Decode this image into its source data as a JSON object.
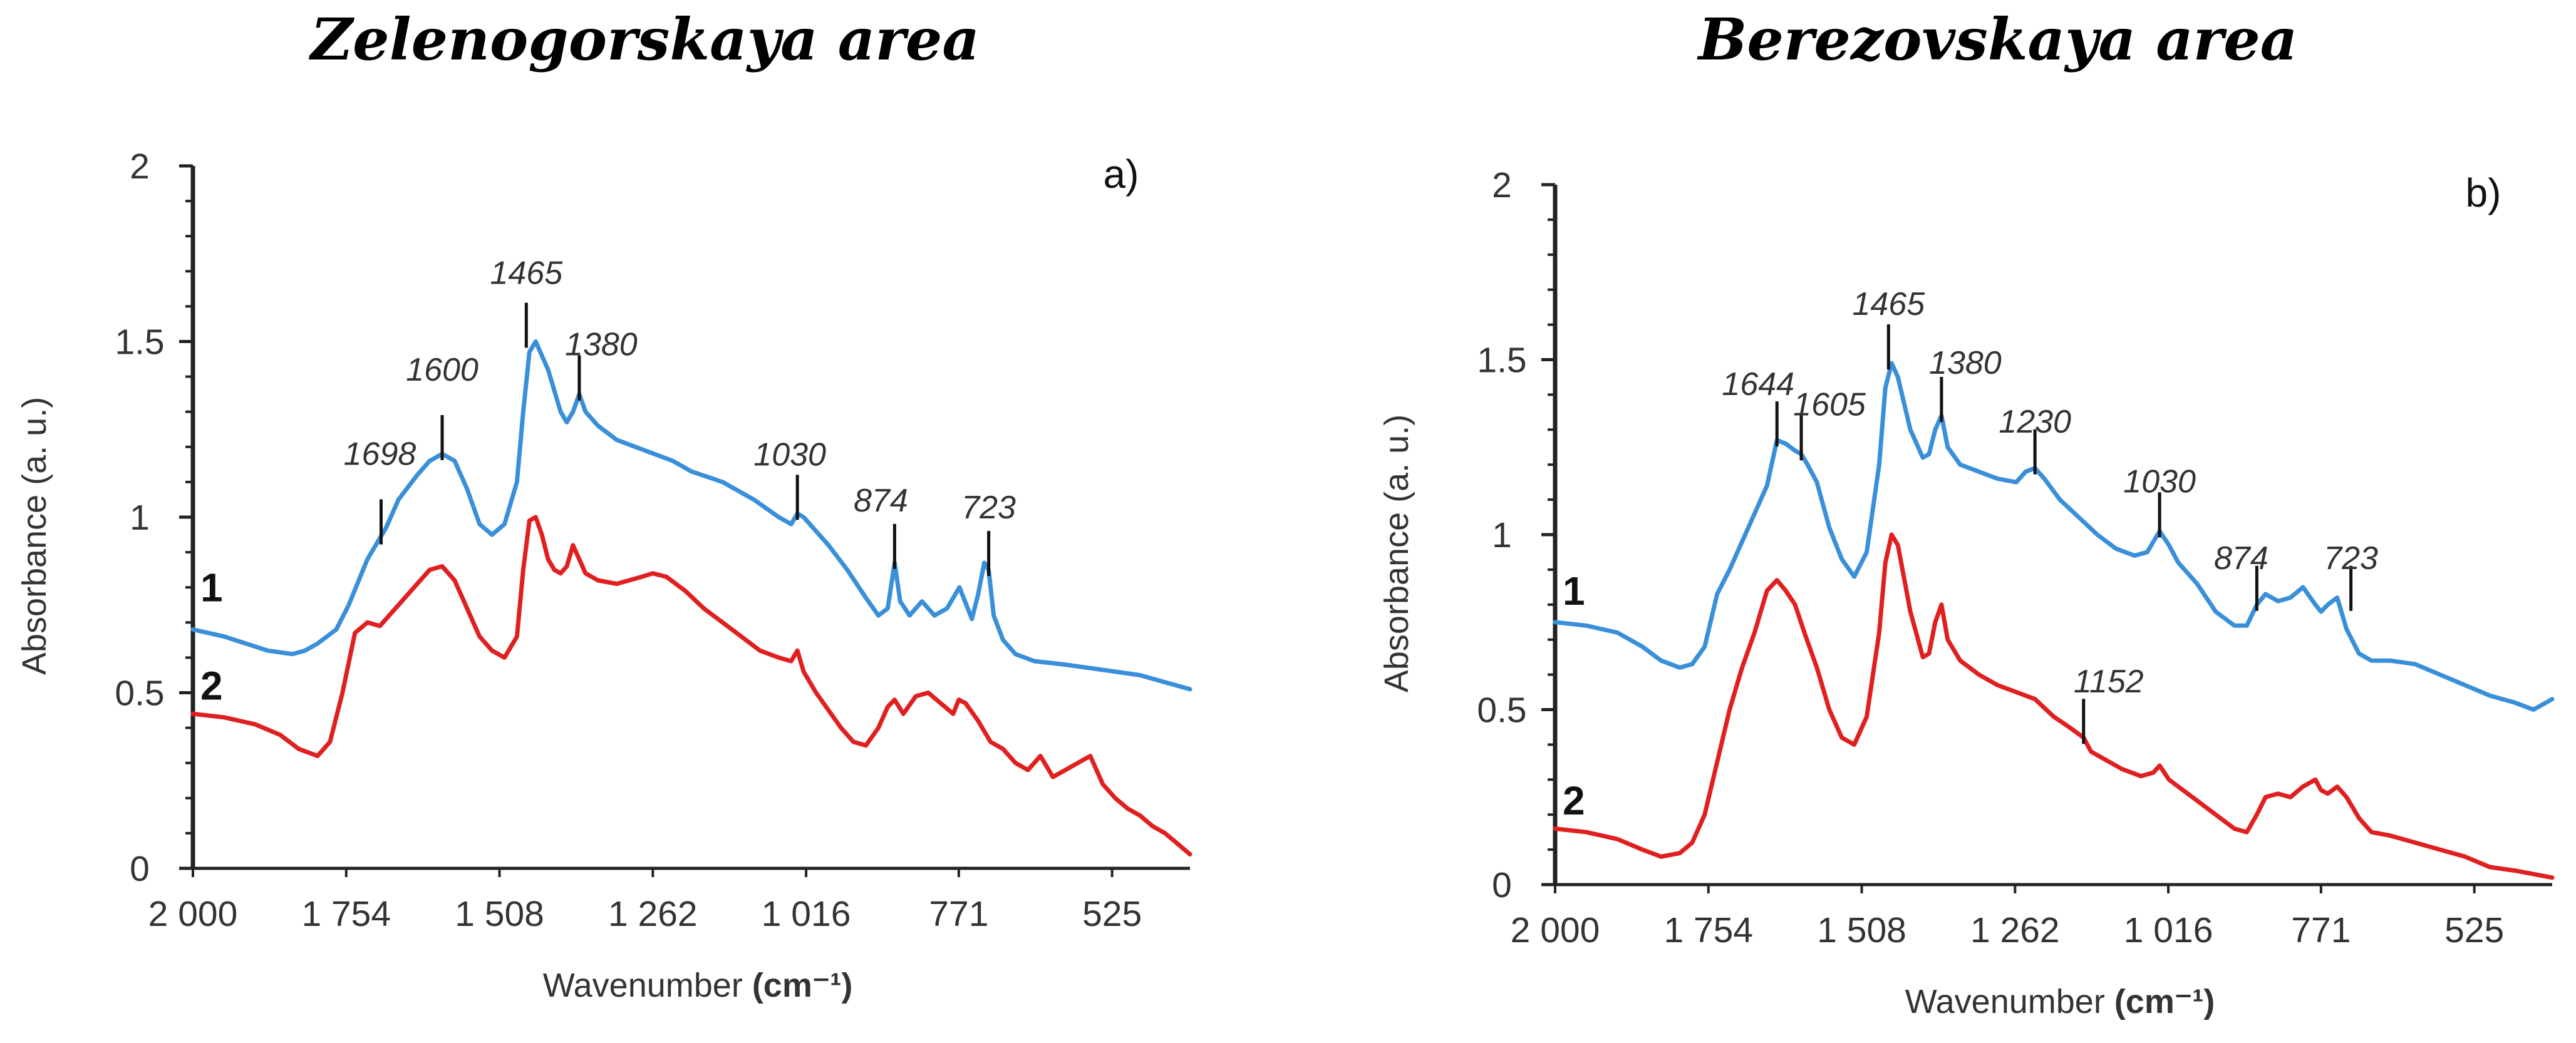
{
  "chart_data": [
    {
      "type": "line",
      "panel_label": "a)",
      "title": "Zelenogorskaya area",
      "xlabel": "Wavenumber",
      "xlabel_unit": "(cm⁻¹)",
      "ylabel": "Absorbance (a. u.)",
      "xlim": [
        2000,
        400
      ],
      "ylim": [
        0,
        2
      ],
      "x_ticks": [
        2000,
        1754,
        1508,
        1262,
        1016,
        771,
        525
      ],
      "x_tick_labels": [
        "2 000",
        "1 754",
        "1 508",
        "1 262",
        "1 016",
        "771",
        "525"
      ],
      "y_ticks": [
        0,
        0.5,
        1,
        1.5,
        2
      ],
      "y_tick_labels": [
        "0",
        "0.5",
        "1",
        "1.5",
        "2"
      ],
      "series": [
        {
          "name": "1",
          "color": "#3a8fd9",
          "x": [
            2000,
            1950,
            1880,
            1840,
            1820,
            1800,
            1770,
            1750,
            1720,
            1700,
            1690,
            1670,
            1640,
            1620,
            1600,
            1580,
            1560,
            1540,
            1520,
            1500,
            1480,
            1470,
            1460,
            1450,
            1430,
            1410,
            1400,
            1390,
            1380,
            1370,
            1350,
            1320,
            1290,
            1260,
            1230,
            1200,
            1150,
            1100,
            1060,
            1040,
            1030,
            1020,
            1000,
            980,
            950,
            920,
            900,
            885,
            874,
            865,
            850,
            830,
            810,
            790,
            770,
            750,
            740,
            730,
            723,
            715,
            700,
            680,
            650,
            600,
            560,
            520,
            480,
            440,
            400
          ],
          "y": [
            0.68,
            0.66,
            0.62,
            0.61,
            0.62,
            0.64,
            0.68,
            0.75,
            0.88,
            0.94,
            0.97,
            1.05,
            1.12,
            1.16,
            1.18,
            1.16,
            1.08,
            0.98,
            0.95,
            0.98,
            1.1,
            1.3,
            1.47,
            1.5,
            1.42,
            1.3,
            1.27,
            1.3,
            1.35,
            1.3,
            1.26,
            1.22,
            1.2,
            1.18,
            1.16,
            1.13,
            1.1,
            1.05,
            1.0,
            0.98,
            1.01,
            1.0,
            0.96,
            0.92,
            0.85,
            0.77,
            0.72,
            0.74,
            0.87,
            0.76,
            0.72,
            0.76,
            0.72,
            0.74,
            0.8,
            0.71,
            0.78,
            0.87,
            0.85,
            0.72,
            0.65,
            0.61,
            0.59,
            0.58,
            0.57,
            0.56,
            0.55,
            0.53,
            0.51
          ]
        },
        {
          "name": "2",
          "color": "#e02020",
          "x": [
            2000,
            1950,
            1900,
            1860,
            1830,
            1800,
            1780,
            1760,
            1740,
            1720,
            1700,
            1680,
            1660,
            1640,
            1620,
            1600,
            1580,
            1560,
            1540,
            1530,
            1520,
            1500,
            1480,
            1470,
            1460,
            1450,
            1440,
            1430,
            1420,
            1410,
            1400,
            1390,
            1380,
            1370,
            1350,
            1320,
            1300,
            1280,
            1262,
            1240,
            1210,
            1180,
            1150,
            1120,
            1090,
            1060,
            1040,
            1030,
            1020,
            1000,
            980,
            960,
            940,
            920,
            900,
            885,
            874,
            860,
            840,
            820,
            800,
            780,
            771,
            760,
            740,
            720,
            700,
            680,
            660,
            640,
            620,
            600,
            580,
            560,
            540,
            520,
            500,
            480,
            460,
            440,
            420,
            400
          ],
          "y": [
            0.44,
            0.43,
            0.41,
            0.38,
            0.34,
            0.32,
            0.36,
            0.5,
            0.67,
            0.7,
            0.69,
            0.73,
            0.77,
            0.81,
            0.85,
            0.86,
            0.82,
            0.74,
            0.66,
            0.64,
            0.62,
            0.6,
            0.66,
            0.85,
            0.99,
            1.0,
            0.95,
            0.88,
            0.85,
            0.84,
            0.86,
            0.92,
            0.88,
            0.84,
            0.82,
            0.81,
            0.82,
            0.83,
            0.84,
            0.83,
            0.79,
            0.74,
            0.7,
            0.66,
            0.62,
            0.6,
            0.59,
            0.62,
            0.56,
            0.5,
            0.45,
            0.4,
            0.36,
            0.35,
            0.4,
            0.46,
            0.48,
            0.44,
            0.49,
            0.5,
            0.47,
            0.44,
            0.48,
            0.47,
            0.42,
            0.36,
            0.34,
            0.3,
            0.28,
            0.32,
            0.26,
            0.28,
            0.3,
            0.32,
            0.24,
            0.2,
            0.17,
            0.15,
            0.12,
            0.1,
            0.07,
            0.04
          ]
        }
      ],
      "peaks": [
        {
          "label": "1698",
          "x": 1698,
          "y": 0.94
        },
        {
          "label": "1600",
          "x": 1600,
          "y": 1.18
        },
        {
          "label": "1465",
          "x": 1465,
          "y": 1.5
        },
        {
          "label": "1380",
          "x": 1380,
          "y": 1.35
        },
        {
          "label": "1030",
          "x": 1030,
          "y": 1.01
        },
        {
          "label": "874",
          "x": 874,
          "y": 0.87
        },
        {
          "label": "723",
          "x": 723,
          "y": 0.85
        }
      ],
      "series_labels": [
        {
          "text": "1",
          "x": 1970,
          "y": 0.76
        },
        {
          "text": "2",
          "x": 1970,
          "y": 0.48
        }
      ]
    },
    {
      "type": "line",
      "panel_label": "b)",
      "title": "Berezovskaya area",
      "xlabel": "Wavenumber",
      "xlabel_unit": "(cm⁻¹)",
      "ylabel": "Absorbance (a. u.)",
      "xlim": [
        2000,
        400
      ],
      "ylim": [
        0,
        2
      ],
      "x_ticks": [
        2000,
        1754,
        1508,
        1262,
        1016,
        771,
        525
      ],
      "x_tick_labels": [
        "2 000",
        "1 754",
        "1 508",
        "1 262",
        "1 016",
        "771",
        "525"
      ],
      "y_ticks": [
        0,
        0.5,
        1,
        1.5,
        2
      ],
      "y_tick_labels": [
        "0",
        "0.5",
        "1",
        "1.5",
        "2"
      ],
      "series": [
        {
          "name": "1",
          "color": "#3a8fd9",
          "x": [
            2000,
            1950,
            1900,
            1860,
            1830,
            1800,
            1780,
            1760,
            1740,
            1720,
            1700,
            1680,
            1660,
            1644,
            1630,
            1615,
            1605,
            1595,
            1580,
            1560,
            1540,
            1520,
            1500,
            1480,
            1470,
            1460,
            1450,
            1430,
            1410,
            1400,
            1390,
            1380,
            1370,
            1350,
            1320,
            1290,
            1260,
            1245,
            1230,
            1215,
            1190,
            1160,
            1130,
            1100,
            1070,
            1050,
            1030,
            1015,
            1000,
            970,
            940,
            910,
            890,
            874,
            860,
            840,
            820,
            800,
            780,
            771,
            760,
            745,
            730,
            710,
            690,
            660,
            620,
            580,
            540,
            500,
            460,
            430,
            400
          ],
          "y": [
            0.75,
            0.74,
            0.72,
            0.68,
            0.64,
            0.62,
            0.63,
            0.68,
            0.83,
            0.9,
            0.98,
            1.06,
            1.14,
            1.27,
            1.26,
            1.24,
            1.23,
            1.2,
            1.15,
            1.02,
            0.93,
            0.88,
            0.95,
            1.2,
            1.42,
            1.49,
            1.45,
            1.3,
            1.22,
            1.23,
            1.3,
            1.34,
            1.25,
            1.2,
            1.18,
            1.16,
            1.15,
            1.18,
            1.19,
            1.16,
            1.1,
            1.05,
            1.0,
            0.96,
            0.94,
            0.95,
            1.01,
            0.97,
            0.92,
            0.86,
            0.78,
            0.74,
            0.74,
            0.8,
            0.83,
            0.81,
            0.82,
            0.85,
            0.8,
            0.78,
            0.8,
            0.82,
            0.73,
            0.66,
            0.64,
            0.64,
            0.63,
            0.6,
            0.57,
            0.54,
            0.52,
            0.5,
            0.53
          ]
        },
        {
          "name": "2",
          "color": "#e02020",
          "x": [
            2000,
            1950,
            1900,
            1860,
            1830,
            1800,
            1780,
            1760,
            1740,
            1720,
            1700,
            1680,
            1660,
            1644,
            1630,
            1615,
            1600,
            1580,
            1560,
            1540,
            1520,
            1500,
            1480,
            1470,
            1460,
            1450,
            1430,
            1410,
            1400,
            1390,
            1380,
            1370,
            1350,
            1320,
            1290,
            1260,
            1230,
            1200,
            1175,
            1152,
            1140,
            1120,
            1090,
            1060,
            1040,
            1030,
            1015,
            1000,
            970,
            940,
            910,
            890,
            874,
            860,
            840,
            820,
            800,
            780,
            771,
            760,
            745,
            730,
            710,
            690,
            660,
            620,
            580,
            540,
            500,
            460,
            430,
            400
          ],
          "y": [
            0.16,
            0.15,
            0.13,
            0.1,
            0.08,
            0.09,
            0.12,
            0.2,
            0.35,
            0.5,
            0.62,
            0.72,
            0.84,
            0.87,
            0.84,
            0.8,
            0.72,
            0.62,
            0.5,
            0.42,
            0.4,
            0.48,
            0.72,
            0.92,
            1.0,
            0.97,
            0.78,
            0.65,
            0.66,
            0.75,
            0.8,
            0.7,
            0.64,
            0.6,
            0.57,
            0.55,
            0.53,
            0.48,
            0.45,
            0.42,
            0.38,
            0.36,
            0.33,
            0.31,
            0.32,
            0.34,
            0.3,
            0.28,
            0.24,
            0.2,
            0.16,
            0.15,
            0.2,
            0.25,
            0.26,
            0.25,
            0.28,
            0.3,
            0.27,
            0.26,
            0.28,
            0.25,
            0.19,
            0.15,
            0.14,
            0.12,
            0.1,
            0.08,
            0.05,
            0.04,
            0.03,
            0.02
          ]
        }
      ],
      "peaks": [
        {
          "label": "1644",
          "x": 1644,
          "y": 1.27
        },
        {
          "label": "1605",
          "x": 1605,
          "y": 1.23
        },
        {
          "label": "1465",
          "x": 1465,
          "y": 1.49
        },
        {
          "label": "1380",
          "x": 1380,
          "y": 1.34
        },
        {
          "label": "1230",
          "x": 1230,
          "y": 1.19
        },
        {
          "label": "1030",
          "x": 1030,
          "y": 1.01
        },
        {
          "label": "874",
          "x": 874,
          "y": 0.8
        },
        {
          "label": "723",
          "x": 723,
          "y": 0.8
        },
        {
          "label": "1152",
          "x": 1152,
          "y": 0.42
        }
      ],
      "series_labels": [
        {
          "text": "1",
          "x": 1970,
          "y": 0.8
        },
        {
          "text": "2",
          "x": 1970,
          "y": 0.2
        }
      ]
    }
  ]
}
